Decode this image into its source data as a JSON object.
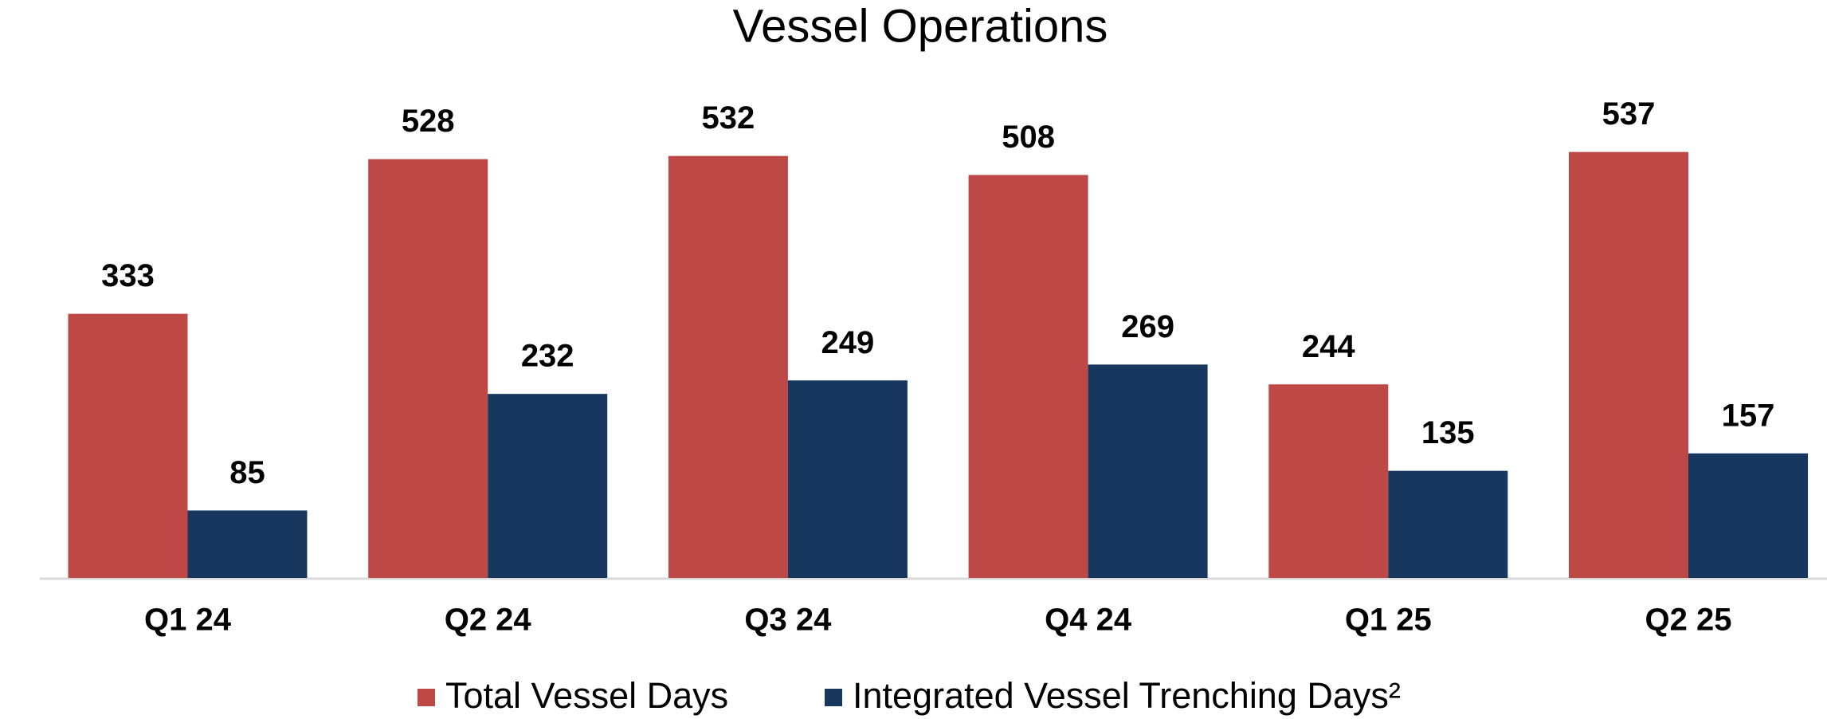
{
  "chart_data": {
    "type": "bar",
    "title": "Vessel Operations",
    "categories": [
      "Q1 24",
      "Q2 24",
      "Q3 24",
      "Q4 24",
      "Q1 25",
      "Q2 25"
    ],
    "series": [
      {
        "name": "Total Vessel Days",
        "color": "#be4845",
        "values": [
          333,
          528,
          532,
          508,
          244,
          537
        ]
      },
      {
        "name": "Integrated Vessel Trenching Days²",
        "color": "#17375e",
        "values": [
          85,
          232,
          249,
          269,
          135,
          157
        ]
      }
    ],
    "legend": "bottom"
  }
}
